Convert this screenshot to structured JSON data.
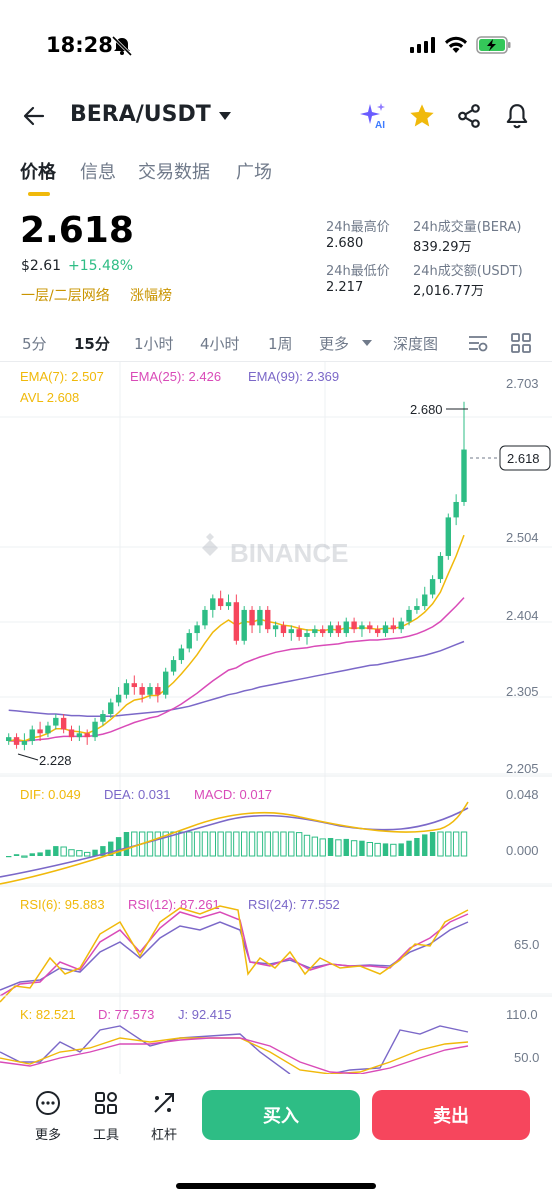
{
  "status": {
    "time": "18:28"
  },
  "header": {
    "pair": "BERA/USDT"
  },
  "tabs": [
    {
      "label": "价格",
      "active": true
    },
    {
      "label": "信息",
      "active": false
    },
    {
      "label": "交易数据",
      "active": false
    },
    {
      "label": "广场",
      "active": false
    }
  ],
  "price": {
    "last": "2.618",
    "usd": "$2.61",
    "change": "+15.48%",
    "tag1": "一层/二层网络",
    "tag2": "涨幅榜"
  },
  "stats": {
    "high_label": "24h最高价",
    "high": "2.680",
    "vol_base_label": "24h成交量(BERA)",
    "vol_base": "839.29万",
    "low_label": "24h最低价",
    "low": "2.217",
    "vol_quote_label": "24h成交额(USDT)",
    "vol_quote": "2,016.77万"
  },
  "intervals": [
    "5分",
    "15分",
    "1小时",
    "4小时",
    "1周",
    "更多",
    "深度图"
  ],
  "active_interval": "15分",
  "indicators": {
    "ema7": "EMA(7): 2.507",
    "ema25": "EMA(25): 2.426",
    "ema99": "EMA(99): 2.369",
    "avl": "AVL 2.608",
    "dif": "DIF: 0.049",
    "dea": "DEA: 0.031",
    "macd": "MACD: 0.017",
    "rsi6": "RSI(6): 95.883",
    "rsi12": "RSI(12): 87.261",
    "rsi24": "RSI(24): 77.552",
    "k": "K: 82.521",
    "d": "D: 77.573",
    "j": "J: 92.415"
  },
  "watermark": "BINANCE",
  "colors": {
    "up": "#2ebd85",
    "down": "#f6465d",
    "accent": "#f0b90b",
    "ema7": "#f0b90b",
    "ema25": "#d94bb8",
    "ema99": "#7b68c8"
  },
  "chart_data": {
    "type": "candlestick",
    "price_axis_ticks": [
      "2.703",
      "2.504",
      "2.404",
      "2.305",
      "2.205"
    ],
    "price_range": [
      2.205,
      2.703
    ],
    "last_price_label": "2.618",
    "max_label": "2.680",
    "min_label": "2.228",
    "candles": [
      [
        2.24,
        2.245,
        2.25,
        2.235
      ],
      [
        2.245,
        2.235,
        2.25,
        2.23
      ],
      [
        2.235,
        2.24,
        2.25,
        2.228
      ],
      [
        2.24,
        2.255,
        2.26,
        2.235
      ],
      [
        2.255,
        2.25,
        2.265,
        2.24
      ],
      [
        2.25,
        2.26,
        2.265,
        2.245
      ],
      [
        2.26,
        2.27,
        2.275,
        2.255
      ],
      [
        2.27,
        2.255,
        2.275,
        2.25
      ],
      [
        2.255,
        2.245,
        2.26,
        2.24
      ],
      [
        2.245,
        2.25,
        2.26,
        2.24
      ],
      [
        2.25,
        2.245,
        2.255,
        2.235
      ],
      [
        2.245,
        2.265,
        2.27,
        2.24
      ],
      [
        2.265,
        2.275,
        2.28,
        2.26
      ],
      [
        2.275,
        2.29,
        2.295,
        2.27
      ],
      [
        2.29,
        2.3,
        2.31,
        2.285
      ],
      [
        2.3,
        2.315,
        2.32,
        2.295
      ],
      [
        2.315,
        2.31,
        2.325,
        2.3
      ],
      [
        2.31,
        2.3,
        2.315,
        2.29
      ],
      [
        2.3,
        2.31,
        2.315,
        2.295
      ],
      [
        2.31,
        2.3,
        2.315,
        2.29
      ],
      [
        2.3,
        2.33,
        2.335,
        2.295
      ],
      [
        2.33,
        2.345,
        2.35,
        2.325
      ],
      [
        2.345,
        2.36,
        2.365,
        2.34
      ],
      [
        2.36,
        2.38,
        2.385,
        2.355
      ],
      [
        2.38,
        2.39,
        2.395,
        2.37
      ],
      [
        2.39,
        2.41,
        2.415,
        2.385
      ],
      [
        2.41,
        2.425,
        2.43,
        2.4
      ],
      [
        2.425,
        2.415,
        2.435,
        2.41
      ],
      [
        2.415,
        2.42,
        2.43,
        2.41
      ],
      [
        2.42,
        2.37,
        2.43,
        2.365
      ],
      [
        2.37,
        2.41,
        2.415,
        2.365
      ],
      [
        2.41,
        2.39,
        2.415,
        2.38
      ],
      [
        2.39,
        2.41,
        2.415,
        2.38
      ],
      [
        2.41,
        2.385,
        2.415,
        2.38
      ],
      [
        2.385,
        2.39,
        2.395,
        2.375
      ],
      [
        2.39,
        2.38,
        2.395,
        2.375
      ],
      [
        2.38,
        2.385,
        2.39,
        2.37
      ],
      [
        2.385,
        2.375,
        2.39,
        2.37
      ],
      [
        2.375,
        2.38,
        2.385,
        2.365
      ],
      [
        2.38,
        2.385,
        2.39,
        2.375
      ],
      [
        2.385,
        2.38,
        2.39,
        2.375
      ],
      [
        2.38,
        2.39,
        2.395,
        2.375
      ],
      [
        2.39,
        2.38,
        2.395,
        2.375
      ],
      [
        2.38,
        2.395,
        2.4,
        2.375
      ],
      [
        2.395,
        2.385,
        2.4,
        2.38
      ],
      [
        2.385,
        2.39,
        2.395,
        2.375
      ],
      [
        2.39,
        2.385,
        2.395,
        2.38
      ],
      [
        2.385,
        2.38,
        2.39,
        2.375
      ],
      [
        2.38,
        2.39,
        2.395,
        2.375
      ],
      [
        2.39,
        2.385,
        2.4,
        2.38
      ],
      [
        2.385,
        2.395,
        2.4,
        2.38
      ],
      [
        2.395,
        2.41,
        2.415,
        2.39
      ],
      [
        2.41,
        2.415,
        2.425,
        2.405
      ],
      [
        2.415,
        2.43,
        2.44,
        2.41
      ],
      [
        2.43,
        2.45,
        2.455,
        2.425
      ],
      [
        2.45,
        2.48,
        2.485,
        2.445
      ],
      [
        2.48,
        2.53,
        2.535,
        2.475
      ],
      [
        2.53,
        2.55,
        2.56,
        2.52
      ],
      [
        2.55,
        2.618,
        2.68,
        2.545
      ]
    ],
    "ema7": [
      2.24,
      2.242,
      2.24,
      2.244,
      2.246,
      2.25,
      2.256,
      2.256,
      2.253,
      2.252,
      2.25,
      2.254,
      2.26,
      2.268,
      2.277,
      2.287,
      2.293,
      2.295,
      2.299,
      2.299,
      2.307,
      2.316,
      2.327,
      2.339,
      2.352,
      2.367,
      2.381,
      2.39,
      2.397,
      2.39,
      2.395,
      2.394,
      2.398,
      2.395,
      2.393,
      2.39,
      2.389,
      2.386,
      2.384,
      2.384,
      2.383,
      2.385,
      2.384,
      2.387,
      2.386,
      2.387,
      2.386,
      2.385,
      2.386,
      2.386,
      2.388,
      2.393,
      2.399,
      2.407,
      2.418,
      2.433,
      2.457,
      2.48,
      2.507
    ],
    "ema25": [
      2.24,
      2.24,
      2.24,
      2.241,
      2.242,
      2.243,
      2.245,
      2.246,
      2.246,
      2.246,
      2.246,
      2.247,
      2.249,
      2.252,
      2.256,
      2.26,
      2.264,
      2.267,
      2.27,
      2.272,
      2.277,
      2.282,
      2.288,
      2.295,
      2.302,
      2.31,
      2.318,
      2.325,
      2.332,
      2.335,
      2.341,
      2.345,
      2.349,
      2.352,
      2.355,
      2.357,
      2.359,
      2.36,
      2.361,
      2.363,
      2.364,
      2.365,
      2.366,
      2.368,
      2.369,
      2.37,
      2.371,
      2.371,
      2.372,
      2.373,
      2.374,
      2.376,
      2.379,
      2.383,
      2.388,
      2.395,
      2.405,
      2.415,
      2.426
    ],
    "ema99": [
      2.28,
      2.279,
      2.278,
      2.277,
      2.276,
      2.275,
      2.275,
      2.274,
      2.273,
      2.273,
      2.272,
      2.272,
      2.272,
      2.272,
      2.273,
      2.274,
      2.275,
      2.276,
      2.277,
      2.278,
      2.279,
      2.281,
      2.283,
      2.285,
      2.288,
      2.291,
      2.294,
      2.297,
      2.3,
      2.302,
      2.305,
      2.307,
      2.31,
      2.312,
      2.314,
      2.316,
      2.318,
      2.32,
      2.322,
      2.324,
      2.326,
      2.328,
      2.33,
      2.332,
      2.334,
      2.336,
      2.338,
      2.339,
      2.341,
      2.343,
      2.345,
      2.347,
      2.349,
      2.351,
      2.354,
      2.357,
      2.361,
      2.365,
      2.369
    ],
    "macd_axis_ticks": [
      "0.048",
      "0.000"
    ],
    "rsi_axis_ticks": [
      "65.0"
    ],
    "kdj_axis_ticks": [
      "110.0",
      "50.0"
    ]
  },
  "bottom": {
    "more": "更多",
    "tools": "工具",
    "leverage": "杠杆",
    "buy": "买入",
    "sell": "卖出"
  }
}
